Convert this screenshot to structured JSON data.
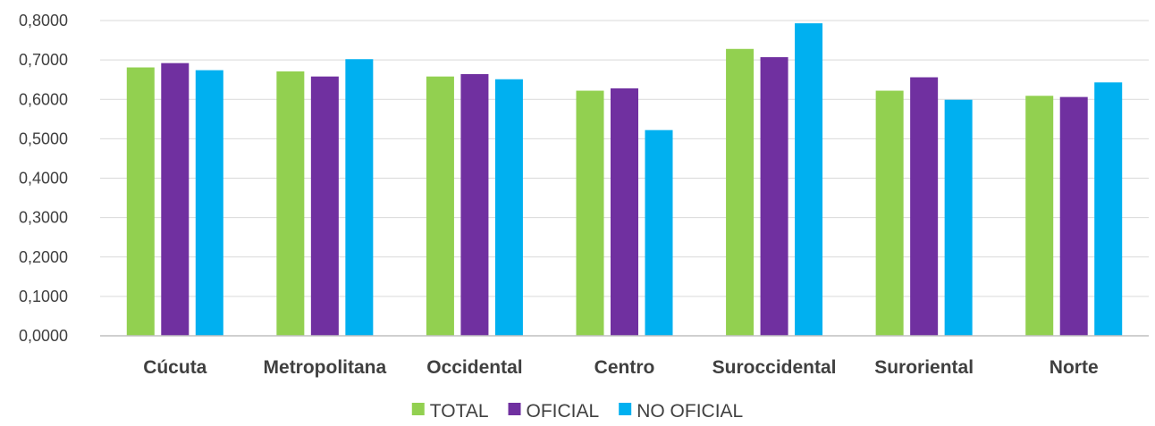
{
  "chart_data": {
    "type": "bar",
    "title": "",
    "xlabel": "",
    "ylabel": "",
    "categories": [
      "Cúcuta",
      "Metropolitana",
      "Occidental",
      "Centro",
      "Suroccidental",
      "Suroriental",
      "Norte"
    ],
    "series": [
      {
        "name": "TOTAL",
        "color": "#92D050",
        "values": [
          0.681,
          0.671,
          0.658,
          0.622,
          0.728,
          0.622,
          0.609
        ]
      },
      {
        "name": "OFICIAL",
        "color": "#7030A0",
        "values": [
          0.692,
          0.658,
          0.664,
          0.628,
          0.707,
          0.656,
          0.606
        ]
      },
      {
        "name": "NO OFICIAL",
        "color": "#00B0F0",
        "values": [
          0.674,
          0.702,
          0.651,
          0.522,
          0.793,
          0.599,
          0.643
        ]
      }
    ],
    "ylim": [
      0,
      0.8
    ],
    "yticks": [
      "0,0000",
      "0,1000",
      "0,2000",
      "0,3000",
      "0,4000",
      "0,5000",
      "0,6000",
      "0,7000",
      "0,8000"
    ],
    "grid": true,
    "legend_position": "bottom"
  }
}
